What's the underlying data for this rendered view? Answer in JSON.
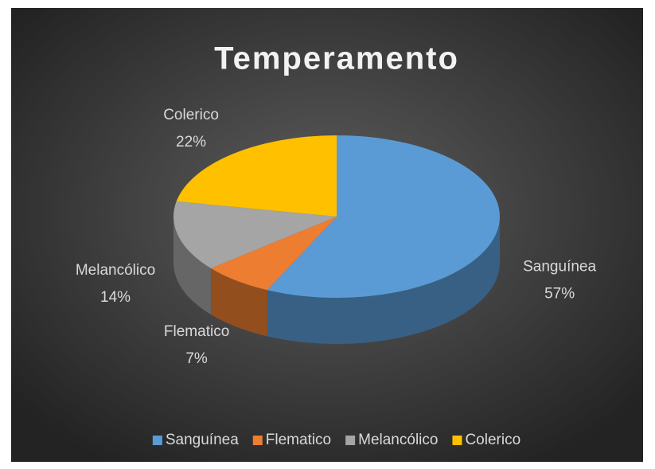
{
  "chart_data": {
    "type": "pie",
    "title": "Temperamento",
    "categories": [
      "Sanguínea",
      "Flematico",
      "Melancólico",
      "Colerico"
    ],
    "values": [
      57,
      7,
      14,
      22
    ],
    "value_labels": [
      "57%",
      "7%",
      "14%",
      "22%"
    ],
    "colors": [
      "#5b9bd5",
      "#ed7d31",
      "#a5a5a5",
      "#ffc000"
    ],
    "legend": "bottom"
  }
}
